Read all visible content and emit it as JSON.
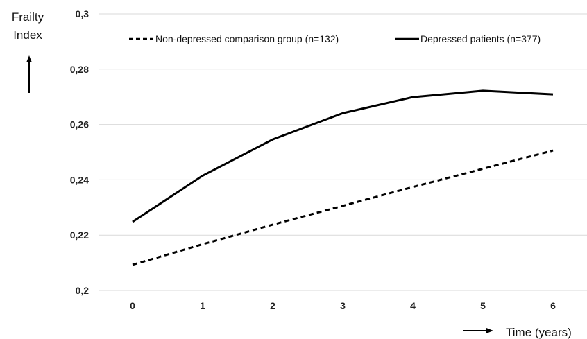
{
  "chart_data": {
    "type": "line",
    "x": [
      0,
      1,
      2,
      3,
      4,
      5,
      6
    ],
    "xlabel": "Time (years)",
    "ylabel": [
      "Frailty",
      "Index"
    ],
    "ylim": [
      0.2,
      0.3
    ],
    "yticks": [
      "0,2",
      "0,22",
      "0,24",
      "0,26",
      "0,28",
      "0,3"
    ],
    "xticks": [
      "0",
      "1",
      "2",
      "3",
      "4",
      "5",
      "6"
    ],
    "grid": true,
    "legend_position": "top",
    "series": [
      {
        "name": "Non-depressed comparison group (n=132)",
        "style": "dashed",
        "color": "#000000",
        "values": [
          0.2093,
          0.2167,
          0.2238,
          0.2306,
          0.2374,
          0.244,
          0.2506
        ]
      },
      {
        "name": "Depressed patients (n=377)",
        "style": "solid",
        "color": "#000000",
        "values": [
          0.2248,
          0.2415,
          0.2546,
          0.2641,
          0.2699,
          0.2722,
          0.2709
        ]
      }
    ]
  }
}
